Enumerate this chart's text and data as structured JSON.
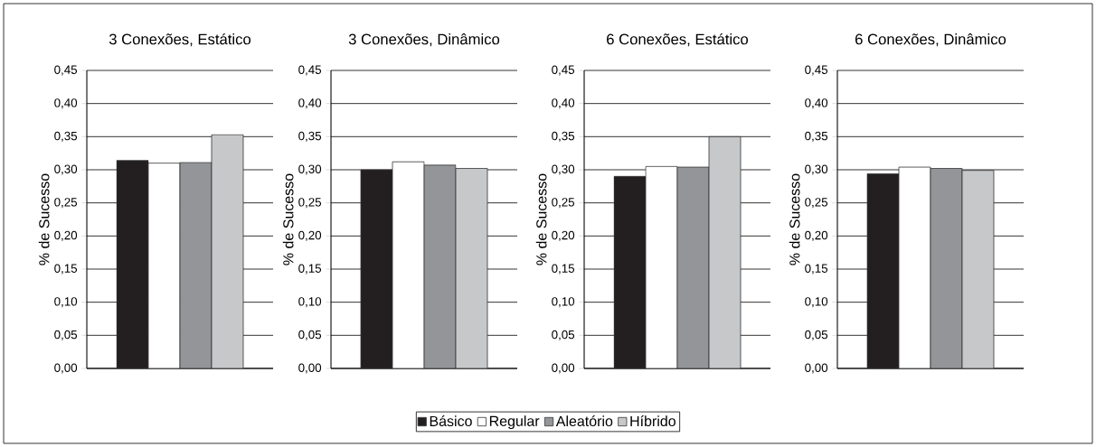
{
  "chart_data": [
    {
      "type": "bar",
      "title": "3 Conexões, Estático",
      "ylabel": "% de Sucesso",
      "categories": [
        null
      ],
      "ylim": [
        0,
        0.45
      ],
      "yticks": [
        {
          "value": 0,
          "label": "0,00"
        },
        {
          "value": 0.05,
          "label": "0,05"
        },
        {
          "value": 0.1,
          "label": "0,10"
        },
        {
          "value": 0.15,
          "label": "0,15"
        },
        {
          "value": 0.2,
          "label": "0,20"
        },
        {
          "value": 0.25,
          "label": "0,25"
        },
        {
          "value": 0.3,
          "label": "0,30"
        },
        {
          "value": 0.35,
          "label": "0,35"
        },
        {
          "value": 0.4,
          "label": "0,40"
        },
        {
          "value": 0.45,
          "label": "0,45"
        }
      ],
      "grid": "y",
      "tick_labels": "y",
      "legend": "bottom",
      "series": [
        {
          "name": "Básico",
          "color": "#231f20",
          "values": [
            0.314
          ]
        },
        {
          "name": "Regular",
          "color": "#ffffff",
          "values": [
            0.31
          ]
        },
        {
          "name": "Aleatório",
          "color": "#939598",
          "values": [
            0.311
          ]
        },
        {
          "name": "Híbrido",
          "color": "#c7c8ca",
          "values": [
            0.353
          ]
        }
      ]
    },
    {
      "type": "bar",
      "title": "3 Conexões, Dinâmico",
      "ylabel": "% de Sucesso",
      "categories": [
        null
      ],
      "ylim": [
        0,
        0.45
      ],
      "yticks": [
        {
          "value": 0,
          "label": "0,00"
        },
        {
          "value": 0.05,
          "label": "0,05"
        },
        {
          "value": 0.1,
          "label": "0,10"
        },
        {
          "value": 0.15,
          "label": "0,15"
        },
        {
          "value": 0.2,
          "label": "0,20"
        },
        {
          "value": 0.25,
          "label": "0,25"
        },
        {
          "value": 0.3,
          "label": "0,30"
        },
        {
          "value": 0.35,
          "label": "0,35"
        },
        {
          "value": 0.4,
          "label": "0,40"
        },
        {
          "value": 0.45,
          "label": "0,45"
        }
      ],
      "grid": "y",
      "tick_labels": "y",
      "series": [
        {
          "color": "#231f20",
          "values": [
            0.3
          ]
        },
        {
          "color": "#ffffff",
          "values": [
            0.312
          ]
        },
        {
          "color": "#939598",
          "values": [
            0.307
          ]
        },
        {
          "color": "#c7c8ca",
          "values": [
            0.302
          ]
        }
      ]
    },
    {
      "type": "bar",
      "title": "6 Conexões, Estático",
      "ylabel": "% de Sucesso",
      "categories": [
        null
      ],
      "ylim": [
        0,
        0.45
      ],
      "yticks": [
        {
          "value": 0,
          "label": "0,00"
        },
        {
          "value": 0.05,
          "label": "0,05"
        },
        {
          "value": 0.1,
          "label": "0,10"
        },
        {
          "value": 0.15,
          "label": "0,15"
        },
        {
          "value": 0.2,
          "label": "0,20"
        },
        {
          "value": 0.25,
          "label": "0,25"
        },
        {
          "value": 0.3,
          "label": "0,30"
        },
        {
          "value": 0.35,
          "label": "0,35"
        },
        {
          "value": 0.4,
          "label": "0,40"
        },
        {
          "value": 0.45,
          "label": "0,45"
        }
      ],
      "grid": "y",
      "tick_labels": "y",
      "series": [
        {
          "color": "#231f20",
          "values": [
            0.29
          ]
        },
        {
          "color": "#ffffff",
          "values": [
            0.305
          ]
        },
        {
          "color": "#939598",
          "values": [
            0.304
          ]
        },
        {
          "color": "#c7c8ca",
          "values": [
            0.35
          ]
        }
      ]
    },
    {
      "type": "bar",
      "title": "6 Conexões, Dinâmico",
      "ylabel": "% de Sucesso",
      "categories": [
        null
      ],
      "ylim": [
        0,
        0.45
      ],
      "yticks": [
        {
          "value": 0,
          "label": "0,00"
        },
        {
          "value": 0.05,
          "label": "0,05"
        },
        {
          "value": 0.1,
          "label": "0,10"
        },
        {
          "value": 0.15,
          "label": "0,15"
        },
        {
          "value": 0.2,
          "label": "0,20"
        },
        {
          "value": 0.25,
          "label": "0,25"
        },
        {
          "value": 0.3,
          "label": "0,30"
        },
        {
          "value": 0.35,
          "label": "0,35"
        },
        {
          "value": 0.4,
          "label": "0,40"
        },
        {
          "value": 0.45,
          "label": "0,45"
        }
      ],
      "grid": "y",
      "tick_labels": "y",
      "series": [
        {
          "color": "#231f20",
          "values": [
            0.294
          ]
        },
        {
          "color": "#ffffff",
          "values": [
            0.304
          ]
        },
        {
          "color": "#939598",
          "values": [
            0.302
          ]
        },
        {
          "color": "#c7c8ca",
          "values": [
            0.299
          ]
        }
      ]
    }
  ]
}
